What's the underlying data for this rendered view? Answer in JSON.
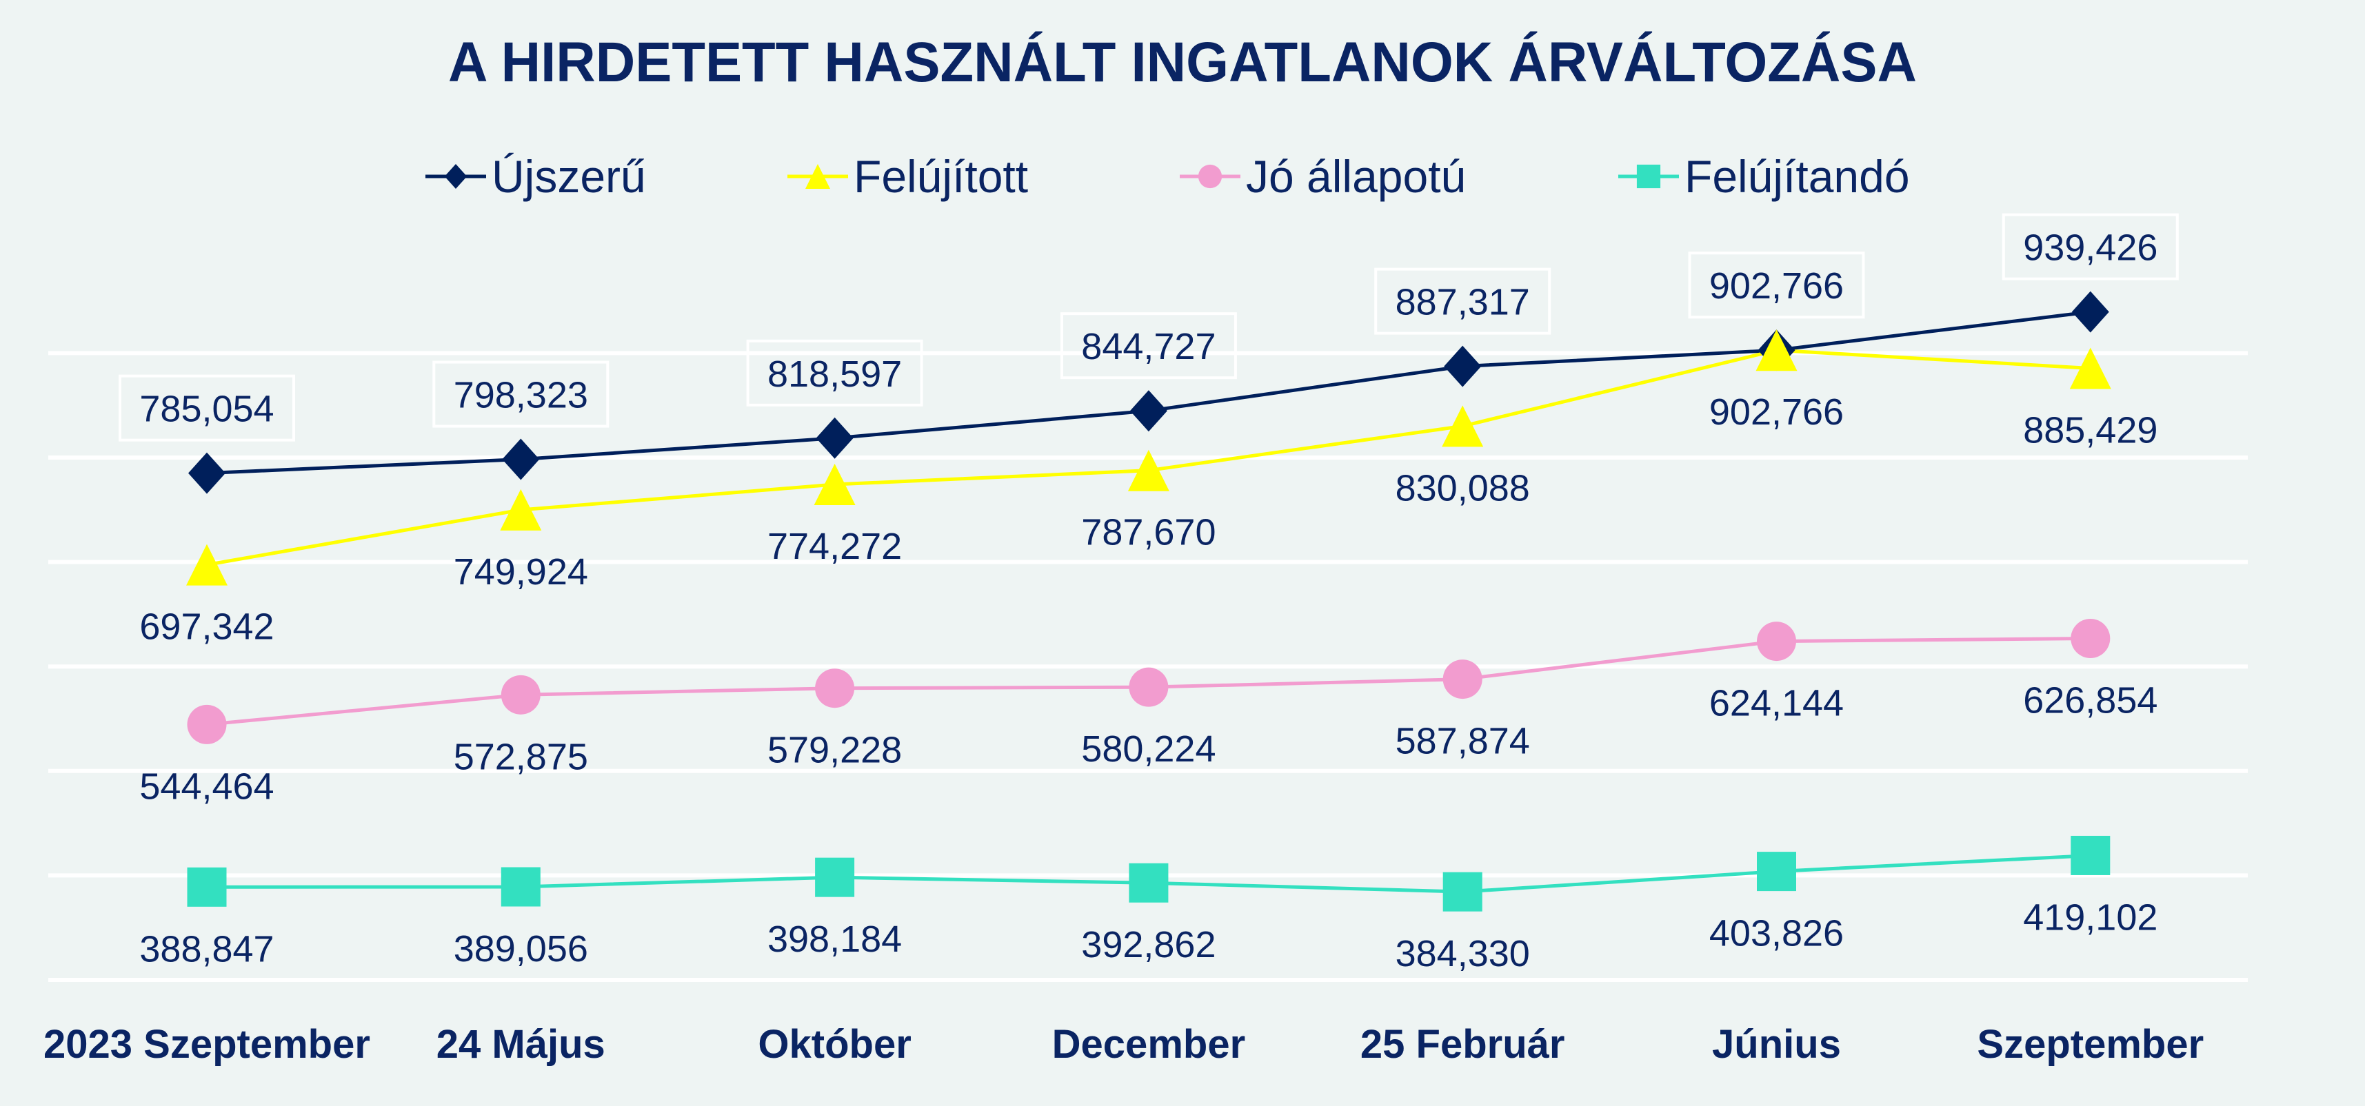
{
  "chart_data": {
    "type": "line",
    "title": "A HIRDETETT HASZNÁLT INGATLANOK ÁRVÁLTOZÁSA",
    "xlabel": "",
    "ylabel": "",
    "categories": [
      "2023 Szeptember",
      "24 Május",
      "Október",
      "December",
      "25 Február",
      "Június",
      "Szeptember"
    ],
    "ylim": [
      300000,
      900000
    ],
    "grid_step": 100000,
    "grid": true,
    "legend_position": "top",
    "series": [
      {
        "name": "Újszerű",
        "marker": "diamond",
        "color": "#001f5b",
        "label_position": "above-boxed",
        "values": [
          785054,
          798323,
          818597,
          844727,
          887317,
          902766,
          939426
        ],
        "labels": [
          "785,054",
          "798,323",
          "818,597",
          "844,727",
          "887,317",
          "902,766",
          "939,426"
        ]
      },
      {
        "name": "Felújított",
        "marker": "triangle",
        "color": "#ffff00",
        "label_position": "below",
        "values": [
          697342,
          749924,
          774272,
          787670,
          830088,
          902766,
          885429
        ],
        "labels": [
          "697,342",
          "749,924",
          "774,272",
          "787,670",
          "830,088",
          "902,766",
          "885,429"
        ]
      },
      {
        "name": "Jó állapotú",
        "marker": "circle",
        "color": "#f29ccf",
        "label_position": "below",
        "values": [
          544464,
          572875,
          579228,
          580224,
          587874,
          624144,
          626854
        ],
        "labels": [
          "544,464",
          "572,875",
          "579,228",
          "580,224",
          "587,874",
          "624,144",
          "626,854"
        ]
      },
      {
        "name": "Felújítandó",
        "marker": "square",
        "color": "#33e0c0",
        "label_position": "below",
        "values": [
          388847,
          389056,
          398184,
          392862,
          384330,
          403826,
          419102
        ],
        "labels": [
          "388,847",
          "389,056",
          "398,184",
          "392,862",
          "384,330",
          "403,826",
          "419,102"
        ]
      }
    ]
  }
}
